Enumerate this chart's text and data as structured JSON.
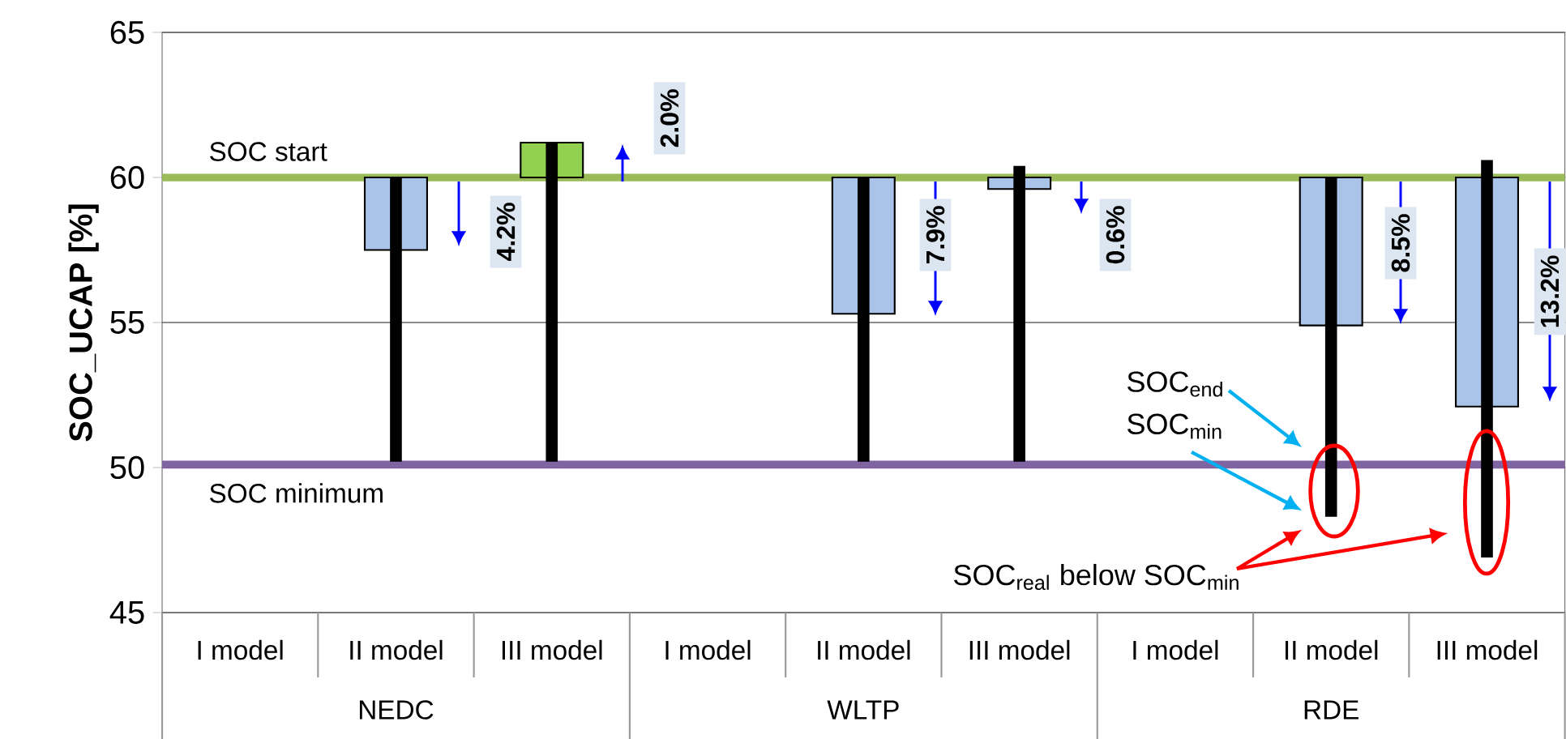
{
  "chart_data": {
    "type": "bar",
    "ylabel": "SOC_UCAP [%]",
    "categories": [
      "I model",
      "II model",
      "III model",
      "I model",
      "II model",
      "III model",
      "I model",
      "II model",
      "III model"
    ],
    "series": [
      {
        "colors": [
          null,
          "#a9c4e8",
          "#92d050",
          null,
          "#a9c4e8",
          "#a9c4e8",
          null,
          "#a9c4e8",
          "#a9c4e8"
        ],
        "base": [
          null,
          60,
          60,
          null,
          60,
          60,
          null,
          60,
          60
        ],
        "values": [
          null,
          -2.5,
          1.2,
          null,
          -4.7,
          -0.4,
          null,
          -5.1,
          -7.9
        ]
      },
      {
        "color": "#000000",
        "base": [
          null,
          50.2,
          50.2,
          null,
          50.2,
          50.2,
          null,
          48.3,
          46.9
        ],
        "values": [
          null,
          9.8,
          11.0,
          null,
          9.8,
          10.2,
          null,
          11.7,
          13.7
        ]
      }
    ],
    "ylim": [
      45,
      65
    ],
    "yticks": [
      45,
      50,
      55,
      60,
      65
    ],
    "grid": "y",
    "ref_lines": [
      {
        "axis": "y",
        "value": 60,
        "label": "SOC start",
        "color": "#9bbb59"
      },
      {
        "axis": "y",
        "value": 50.1,
        "label": "SOC minimum",
        "color": "#8064a2"
      }
    ],
    "annotations": [
      "NEDC",
      "WLTP",
      "RDE",
      "4.2%",
      "2.0%",
      "7.9%",
      "0.6%",
      "8.5%",
      "13.2%",
      "SOC$_{end}$",
      "SOC$_{min}$",
      "SOC$_{real}$ below SOC$_{min}$"
    ]
  }
}
